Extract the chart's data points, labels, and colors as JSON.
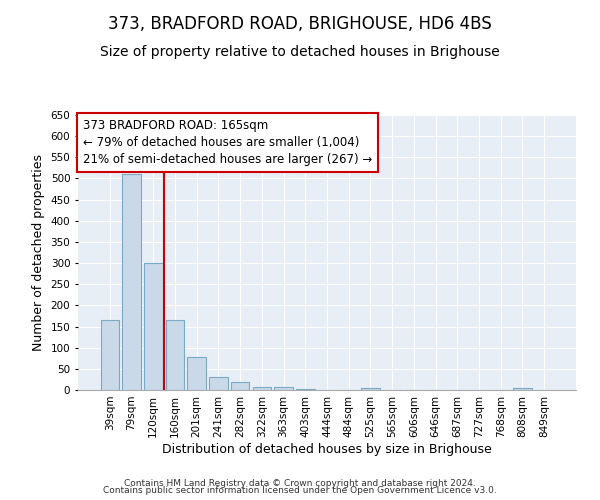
{
  "title": "373, BRADFORD ROAD, BRIGHOUSE, HD6 4BS",
  "subtitle": "Size of property relative to detached houses in Brighouse",
  "xlabel": "Distribution of detached houses by size in Brighouse",
  "ylabel": "Number of detached properties",
  "categories": [
    "39sqm",
    "79sqm",
    "120sqm",
    "160sqm",
    "201sqm",
    "241sqm",
    "282sqm",
    "322sqm",
    "363sqm",
    "403sqm",
    "444sqm",
    "484sqm",
    "525sqm",
    "565sqm",
    "606sqm",
    "646sqm",
    "687sqm",
    "727sqm",
    "768sqm",
    "808sqm",
    "849sqm"
  ],
  "values": [
    165,
    510,
    300,
    165,
    77,
    30,
    18,
    6,
    8,
    2,
    1,
    0,
    5,
    0,
    0,
    0,
    0,
    0,
    0,
    5,
    0
  ],
  "bar_color": "#c9d9e8",
  "bar_edge_color": "#7aaac8",
  "vline_x": 2.5,
  "vline_color": "#cc0000",
  "annotation_line1": "373 BRADFORD ROAD: 165sqm",
  "annotation_line2": "← 79% of detached houses are smaller (1,004)",
  "annotation_line3": "21% of semi-detached houses are larger (267) →",
  "annotation_box_color": "#cc0000",
  "ylim": [
    0,
    650
  ],
  "yticks": [
    0,
    50,
    100,
    150,
    200,
    250,
    300,
    350,
    400,
    450,
    500,
    550,
    600,
    650
  ],
  "background_color": "#e8eef5",
  "footer_line1": "Contains HM Land Registry data © Crown copyright and database right 2024.",
  "footer_line2": "Contains public sector information licensed under the Open Government Licence v3.0.",
  "title_fontsize": 12,
  "subtitle_fontsize": 10,
  "tick_fontsize": 7.5,
  "ylabel_fontsize": 9,
  "xlabel_fontsize": 9,
  "annotation_fontsize": 8.5,
  "footer_fontsize": 6.5
}
